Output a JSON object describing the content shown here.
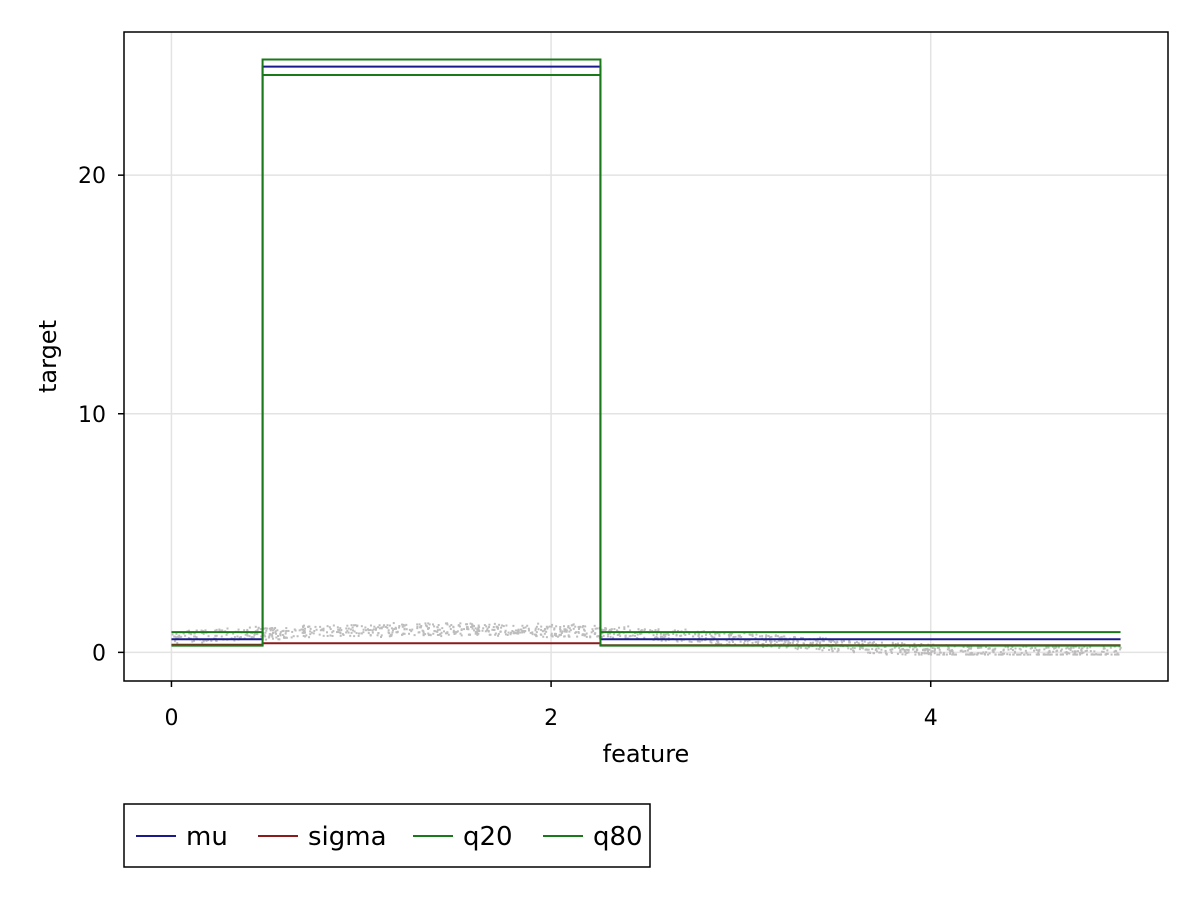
{
  "chart_data": {
    "type": "line",
    "title": "",
    "xlabel": "feature",
    "ylabel": "target",
    "xlim": [
      -0.25,
      5.25
    ],
    "ylim": [
      -1.2,
      26.0
    ],
    "xticks": [
      0,
      2,
      4
    ],
    "yticks": [
      0,
      10,
      20
    ],
    "grid": true,
    "legend": {
      "position": "bottom-left",
      "orientation": "horizontal"
    },
    "series": [
      {
        "name": "mu",
        "color": "#1a1a8c",
        "x": [
          0,
          0.48,
          0.48,
          2.26,
          2.26,
          5.0
        ],
        "y": [
          0.55,
          0.55,
          24.55,
          24.55,
          0.55,
          0.55
        ]
      },
      {
        "name": "sigma",
        "color": "#8b1a1a",
        "x": [
          0,
          0.48,
          0.48,
          2.26,
          2.26,
          5.0
        ],
        "y": [
          0.32,
          0.32,
          0.38,
          0.38,
          0.3,
          0.3
        ]
      },
      {
        "name": "q20",
        "color": "#1a7a1a",
        "x": [
          0,
          0.48,
          0.48,
          2.26,
          2.26,
          5.0
        ],
        "y": [
          0.28,
          0.28,
          24.2,
          24.2,
          0.28,
          0.28
        ]
      },
      {
        "name": "q80",
        "color": "#1a7a1a",
        "x": [
          0,
          0.48,
          0.48,
          2.26,
          2.26,
          5.0
        ],
        "y": [
          0.85,
          0.85,
          24.85,
          24.85,
          0.85,
          0.85
        ]
      }
    ],
    "scatter_color": "#bdbdbd"
  }
}
